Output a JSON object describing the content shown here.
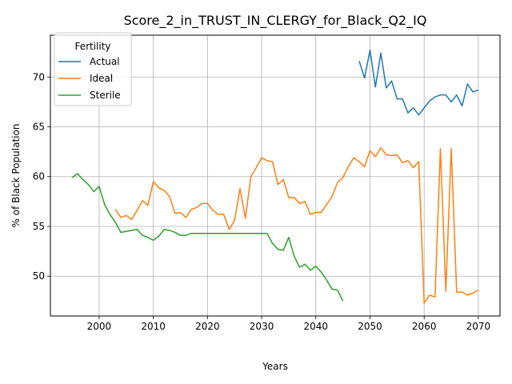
{
  "chart_data": {
    "type": "line",
    "title": "Score_2_in_TRUST_IN_CLERGY_for_Black_Q2_IQ",
    "xlabel": "Years",
    "ylabel": "% of Black Population",
    "xlim": [
      1991,
      2074
    ],
    "ylim": [
      46.0,
      74.2
    ],
    "xticks": [
      2000,
      2010,
      2020,
      2030,
      2040,
      2050,
      2060,
      2070
    ],
    "yticks": [
      50,
      55,
      60,
      65,
      70
    ],
    "grid": true,
    "legend": {
      "title": "Fertility",
      "placement": "upper-left"
    },
    "series": [
      {
        "name": "Actual",
        "color": "#1f77b4",
        "x": [
          2048,
          2049,
          2050,
          2051,
          2052,
          2053,
          2054,
          2055,
          2056,
          2057,
          2058,
          2059,
          2060,
          2061,
          2062,
          2063,
          2064,
          2065,
          2066,
          2067,
          2068,
          2069,
          2070
        ],
        "y": [
          71.6,
          69.9,
          72.7,
          69.0,
          72.4,
          68.9,
          69.6,
          67.8,
          67.8,
          66.4,
          66.9,
          66.2,
          66.9,
          67.6,
          68.0,
          68.2,
          68.2,
          67.5,
          68.2,
          67.1,
          69.3,
          68.5,
          68.7
        ]
      },
      {
        "name": "Ideal",
        "color": "#ff7f0e",
        "x": [
          2003,
          2004,
          2005,
          2006,
          2007,
          2008,
          2009,
          2010,
          2011,
          2012,
          2013,
          2014,
          2015,
          2016,
          2017,
          2018,
          2019,
          2020,
          2021,
          2022,
          2023,
          2024,
          2025,
          2026,
          2027,
          2028,
          2029,
          2030,
          2031,
          2032,
          2033,
          2034,
          2035,
          2036,
          2037,
          2038,
          2039,
          2040,
          2041,
          2042,
          2043,
          2044,
          2045,
          2046,
          2047,
          2048,
          2049,
          2050,
          2051,
          2052,
          2053,
          2054,
          2055,
          2056,
          2057,
          2058,
          2059,
          2060,
          2061,
          2062,
          2063,
          2064,
          2065,
          2066,
          2067,
          2068,
          2069,
          2070
        ],
        "y": [
          56.7,
          55.9,
          56.1,
          55.7,
          56.6,
          57.6,
          57.1,
          59.5,
          58.9,
          58.6,
          58.0,
          56.3,
          56.4,
          55.9,
          56.7,
          56.9,
          57.3,
          57.3,
          56.6,
          56.2,
          56.2,
          54.7,
          55.6,
          58.8,
          55.8,
          60.0,
          60.9,
          61.9,
          61.6,
          61.5,
          59.2,
          59.7,
          57.9,
          57.9,
          57.3,
          57.5,
          56.2,
          56.4,
          56.4,
          57.2,
          58.0,
          59.4,
          59.9,
          61.0,
          61.9,
          61.5,
          61.0,
          62.6,
          62.0,
          62.9,
          62.2,
          62.1,
          62.2,
          61.4,
          61.6,
          60.9,
          61.5,
          47.3,
          48.1,
          47.9,
          62.8,
          48.5,
          62.8,
          48.4,
          48.4,
          48.1,
          48.3,
          48.6
        ]
      },
      {
        "name": "Sterile",
        "color": "#2ca02c",
        "x": [
          1995,
          1996,
          1997,
          1998,
          1999,
          2000,
          2001,
          2002,
          2003,
          2004,
          2005,
          2006,
          2007,
          2008,
          2009,
          2010,
          2011,
          2012,
          2013,
          2014,
          2015,
          2016,
          2017,
          2018,
          2019,
          2020,
          2021,
          2022,
          2023,
          2024,
          2025,
          2026,
          2027,
          2028,
          2029,
          2030,
          2031,
          2032,
          2033,
          2034,
          2035,
          2036,
          2037,
          2038,
          2039,
          2040,
          2041,
          2042,
          2043,
          2044,
          2045
        ],
        "y": [
          59.9,
          60.3,
          59.7,
          59.2,
          58.5,
          59.0,
          57.2,
          56.2,
          55.4,
          54.4,
          54.5,
          54.6,
          54.7,
          54.1,
          53.9,
          53.6,
          54.0,
          54.7,
          54.6,
          54.4,
          54.1,
          54.1,
          54.3,
          54.3,
          54.3,
          54.3,
          54.3,
          54.3,
          54.3,
          54.3,
          54.3,
          54.3,
          54.3,
          54.3,
          54.3,
          54.3,
          54.3,
          53.3,
          52.7,
          52.6,
          53.9,
          52.0,
          50.9,
          51.2,
          50.6,
          51.0,
          50.4,
          49.6,
          48.7,
          48.6,
          47.5
        ]
      }
    ]
  }
}
